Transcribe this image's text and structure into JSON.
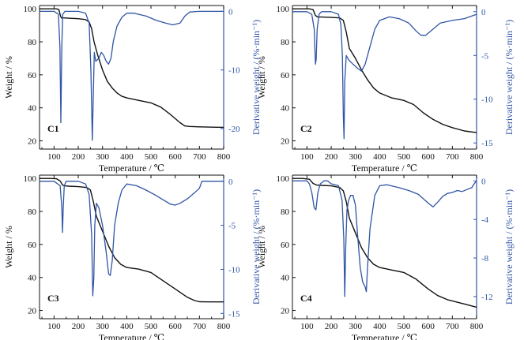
{
  "colors": {
    "weight": "#111111",
    "derivative": "#2f55a4",
    "axis": "#111111"
  },
  "chart_data": [
    {
      "type": "line",
      "panel_label": "C1",
      "xlabel": "Temperature / ℃",
      "ylabel_left": "Weight / %",
      "ylabel_right": "Derivative weight / (%·min⁻¹)",
      "xlim": [
        40,
        800
      ],
      "ylim_left": [
        15,
        102
      ],
      "ylim_right": [
        -23.5,
        1.0
      ],
      "xticks": [
        100,
        200,
        300,
        400,
        500,
        600,
        700,
        800
      ],
      "yticks_left": [
        20,
        40,
        60,
        80,
        100
      ],
      "yticks_right": [
        0,
        -10,
        -20
      ],
      "series": [
        {
          "axis": "left",
          "x": [
            40,
            80,
            110,
            120,
            126,
            130,
            140,
            160,
            200,
            230,
            245,
            255,
            265,
            280,
            300,
            320,
            340,
            360,
            380,
            400,
            450,
            500,
            540,
            580,
            620,
            640,
            660,
            700,
            750,
            800
          ],
          "y": [
            100,
            100,
            100,
            99.5,
            96,
            94.5,
            94.5,
            94.3,
            94.0,
            93.5,
            92,
            88,
            80,
            72,
            63,
            56,
            52,
            49,
            47,
            46,
            44.5,
            43,
            40.5,
            36,
            31,
            29,
            28.7,
            28.5,
            28.3,
            28.2
          ]
        },
        {
          "axis": "right",
          "x": [
            40,
            100,
            118,
            124,
            128,
            132,
            136,
            145,
            160,
            200,
            230,
            245,
            252,
            258,
            262,
            266,
            272,
            285,
            295,
            305,
            315,
            325,
            335,
            345,
            360,
            380,
            400,
            430,
            480,
            520,
            560,
            590,
            620,
            640,
            660,
            700,
            750,
            800
          ],
          "y": [
            0,
            0,
            -0.5,
            -6,
            -19,
            -6,
            -0.5,
            0,
            0,
            0,
            -0.3,
            -2,
            -10,
            -22,
            -14,
            -7,
            -8.5,
            -8,
            -7,
            -7.5,
            -8.5,
            -9,
            -8,
            -5,
            -2.5,
            -1,
            -0.3,
            -0.3,
            -0.8,
            -1.5,
            -2,
            -2.3,
            -2,
            -0.8,
            -0.1,
            0,
            0,
            0
          ]
        }
      ]
    },
    {
      "type": "line",
      "panel_label": "C2",
      "xlabel": "Temperature / ℃",
      "ylabel_left": "Weight / %",
      "ylabel_right": "Derivative weight / (%·min⁻¹)",
      "xlim": [
        40,
        800
      ],
      "ylim_left": [
        15,
        102
      ],
      "ylim_right": [
        -15.7,
        0.7
      ],
      "xticks": [
        100,
        200,
        300,
        400,
        500,
        600,
        700,
        800
      ],
      "yticks_left": [
        20,
        40,
        60,
        80,
        100
      ],
      "yticks_right": [
        0,
        -5,
        -10,
        -15
      ],
      "series": [
        {
          "axis": "left",
          "x": [
            40,
            80,
            110,
            125,
            135,
            145,
            160,
            200,
            235,
            250,
            262,
            275,
            300,
            325,
            350,
            375,
            400,
            450,
            500,
            540,
            580,
            620,
            660,
            700,
            750,
            800
          ],
          "y": [
            100,
            100,
            100,
            99.5,
            96,
            95,
            95,
            94.8,
            94.5,
            93,
            86,
            76,
            70,
            63,
            57,
            52,
            49,
            46,
            44.5,
            42,
            37,
            33,
            30,
            28,
            26,
            25
          ]
        },
        {
          "axis": "right",
          "x": [
            40,
            100,
            120,
            130,
            135,
            138,
            142,
            150,
            160,
            200,
            230,
            240,
            246,
            250,
            253,
            256,
            262,
            272,
            290,
            310,
            325,
            340,
            360,
            380,
            400,
            440,
            480,
            520,
            550,
            570,
            590,
            620,
            650,
            700,
            750,
            800
          ],
          "y": [
            0,
            0,
            -0.3,
            -2,
            -6,
            -5.5,
            -2,
            -0.3,
            0,
            0,
            -0.3,
            -1.5,
            -5,
            -12,
            -14.5,
            -8,
            -5,
            -5.5,
            -6,
            -6.5,
            -6.8,
            -6,
            -4,
            -2,
            -1,
            -0.6,
            -0.8,
            -1.3,
            -2.2,
            -2.7,
            -2.7,
            -2,
            -1.3,
            -1,
            -0.8,
            -0.3
          ]
        }
      ]
    },
    {
      "type": "line",
      "panel_label": "C3",
      "xlabel": "Temperature / ℃",
      "ylabel_left": "Weight / %",
      "ylabel_right": "Derivative weight / (%·min⁻¹)",
      "xlim": [
        40,
        800
      ],
      "ylim_left": [
        15,
        102
      ],
      "ylim_right": [
        -15.6,
        0.7
      ],
      "xticks": [
        100,
        200,
        300,
        400,
        500,
        600,
        700,
        800
      ],
      "yticks_left": [
        20,
        40,
        60,
        80,
        100
      ],
      "yticks_right": [
        0,
        -5,
        -10,
        -15
      ],
      "series": [
        {
          "axis": "left",
          "x": [
            40,
            80,
            110,
            125,
            135,
            145,
            160,
            200,
            235,
            250,
            262,
            275,
            300,
            325,
            350,
            375,
            400,
            450,
            500,
            550,
            600,
            650,
            680,
            700,
            750,
            800
          ],
          "y": [
            100,
            100,
            99.8,
            98.5,
            96,
            95.5,
            95.3,
            95,
            94.5,
            93,
            86,
            77,
            68,
            59,
            52,
            48,
            46,
            45,
            43,
            38,
            33,
            28,
            26,
            25.3,
            25.2,
            25.2
          ]
        },
        {
          "axis": "right",
          "x": [
            40,
            100,
            125,
            132,
            135,
            138,
            142,
            150,
            170,
            200,
            230,
            245,
            255,
            260,
            264,
            268,
            275,
            285,
            300,
            315,
            325,
            332,
            340,
            350,
            365,
            380,
            400,
            440,
            480,
            520,
            550,
            580,
            600,
            620,
            650,
            680,
            700,
            710,
            720,
            750,
            800
          ],
          "y": [
            0,
            0,
            -0.5,
            -3,
            -5.8,
            -3,
            -0.5,
            0,
            0,
            0,
            -0.3,
            -1.5,
            -6,
            -13,
            -11,
            -5,
            -2.5,
            -3,
            -5,
            -8,
            -10.5,
            -10.7,
            -9,
            -5,
            -2.5,
            -1,
            -0.3,
            -0.5,
            -1,
            -1.6,
            -2.1,
            -2.6,
            -2.7,
            -2.5,
            -2,
            -1.3,
            -0.8,
            0,
            0,
            0,
            0
          ]
        }
      ]
    },
    {
      "type": "line",
      "panel_label": "C4",
      "xlabel": "Temperature / ℃",
      "ylabel_left": "Weight / %",
      "ylabel_right": "Derivative weight / (%·min⁻¹)",
      "xlim": [
        40,
        800
      ],
      "ylim_left": [
        15,
        102
      ],
      "ylim_right": [
        -14.3,
        0.6
      ],
      "xticks": [
        100,
        200,
        300,
        400,
        500,
        600,
        700,
        800
      ],
      "yticks_left": [
        20,
        40,
        60,
        80,
        100
      ],
      "yticks_right": [
        0,
        -4,
        -8,
        -12
      ],
      "series": [
        {
          "axis": "left",
          "x": [
            40,
            80,
            110,
            125,
            140,
            160,
            200,
            235,
            250,
            262,
            275,
            300,
            325,
            350,
            375,
            400,
            450,
            500,
            550,
            600,
            640,
            680,
            720,
            760,
            800
          ],
          "y": [
            100,
            100,
            99.5,
            97,
            96,
            95.8,
            95.5,
            94.5,
            92.5,
            86,
            76,
            67,
            58,
            52,
            48,
            46,
            44.5,
            43,
            39,
            33,
            29,
            26.5,
            25,
            23.5,
            22
          ]
        },
        {
          "axis": "right",
          "x": [
            40,
            100,
            110,
            120,
            130,
            137,
            145,
            155,
            170,
            185,
            200,
            230,
            245,
            252,
            256,
            260,
            265,
            272,
            280,
            290,
            300,
            310,
            320,
            330,
            340,
            345,
            350,
            360,
            380,
            400,
            430,
            480,
            520,
            560,
            600,
            620,
            640,
            660,
            680,
            700,
            720,
            740,
            760,
            780,
            790,
            800
          ],
          "y": [
            0,
            0,
            -0.3,
            -1.2,
            -2.8,
            -3,
            -1.2,
            -0.3,
            0,
            0,
            -0.3,
            -0.5,
            -2,
            -6,
            -12,
            -7,
            -3,
            -2,
            -1.5,
            -1.5,
            -2.5,
            -6,
            -9,
            -10.5,
            -11,
            -11.5,
            -9,
            -5,
            -1.5,
            -0.5,
            -0.4,
            -0.7,
            -1,
            -1.4,
            -2.3,
            -2.7,
            -2.2,
            -1.6,
            -1.3,
            -1.2,
            -1,
            -1.1,
            -0.9,
            -0.7,
            -0.3,
            0
          ]
        }
      ]
    }
  ]
}
